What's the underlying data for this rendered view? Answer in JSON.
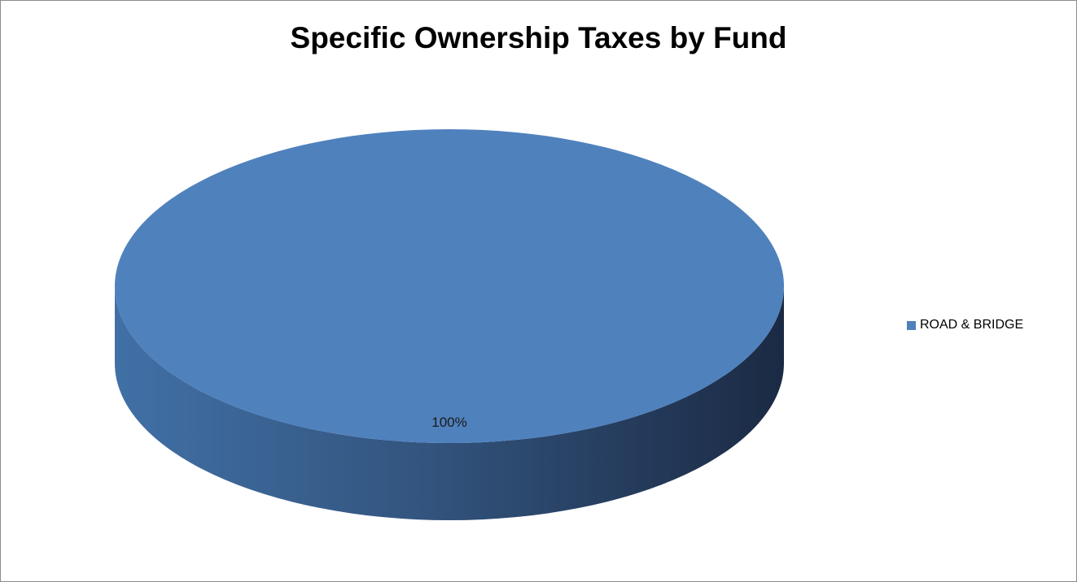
{
  "chart_data": {
    "type": "pie",
    "title": "Specific Ownership Taxes by Fund",
    "categories": [
      "ROAD & BRIDGE"
    ],
    "values": [
      100
    ],
    "data_labels": [
      "100%"
    ],
    "colors": [
      "#4f81bd"
    ],
    "legend_position": "right",
    "style": "3d"
  }
}
